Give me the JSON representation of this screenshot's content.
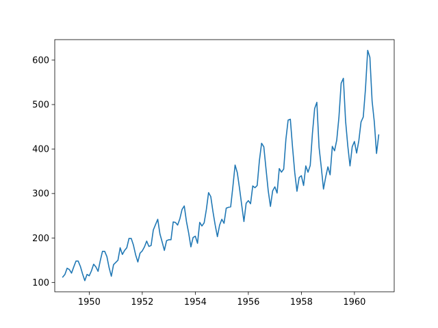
{
  "chart_data": {
    "type": "line",
    "title": "",
    "xlabel": "",
    "ylabel": "",
    "xlim": [
      1948.7,
      1961.5
    ],
    "ylim": [
      79,
      646
    ],
    "grid": false,
    "colors": {
      "line": "#1f77b4"
    },
    "x_ticks": [
      1950,
      1952,
      1954,
      1956,
      1958,
      1960
    ],
    "x_tick_labels": [
      "1950",
      "1952",
      "1954",
      "1956",
      "1958",
      "1960"
    ],
    "y_ticks": [
      100,
      200,
      300,
      400,
      500,
      600
    ],
    "y_tick_labels": [
      "100",
      "200",
      "300",
      "400",
      "500",
      "600"
    ],
    "series": [
      {
        "x_start": 1949.0,
        "x_step": 0.0833333,
        "values": [
          112,
          118,
          132,
          129,
          121,
          135,
          148,
          148,
          136,
          119,
          104,
          118,
          115,
          126,
          141,
          135,
          125,
          149,
          170,
          170,
          158,
          133,
          114,
          140,
          145,
          150,
          178,
          163,
          172,
          178,
          199,
          199,
          184,
          162,
          146,
          166,
          171,
          180,
          193,
          181,
          183,
          218,
          230,
          242,
          209,
          191,
          172,
          194,
          196,
          196,
          236,
          235,
          229,
          243,
          264,
          272,
          237,
          211,
          180,
          201,
          204,
          188,
          235,
          227,
          234,
          264,
          302,
          293,
          259,
          229,
          203,
          229,
          242,
          233,
          267,
          269,
          270,
          315,
          364,
          347,
          312,
          274,
          237,
          278,
          284,
          277,
          317,
          313,
          318,
          374,
          413,
          405,
          355,
          306,
          271,
          306,
          315,
          301,
          356,
          348,
          355,
          422,
          465,
          467,
          404,
          347,
          305,
          336,
          340,
          318,
          362,
          348,
          363,
          435,
          491,
          505,
          404,
          359,
          310,
          337,
          360,
          342,
          406,
          396,
          420,
          472,
          548,
          559,
          463,
          407,
          362,
          405,
          417,
          391,
          419,
          461,
          472,
          535,
          622,
          606,
          508,
          461,
          390,
          432
        ]
      }
    ]
  }
}
